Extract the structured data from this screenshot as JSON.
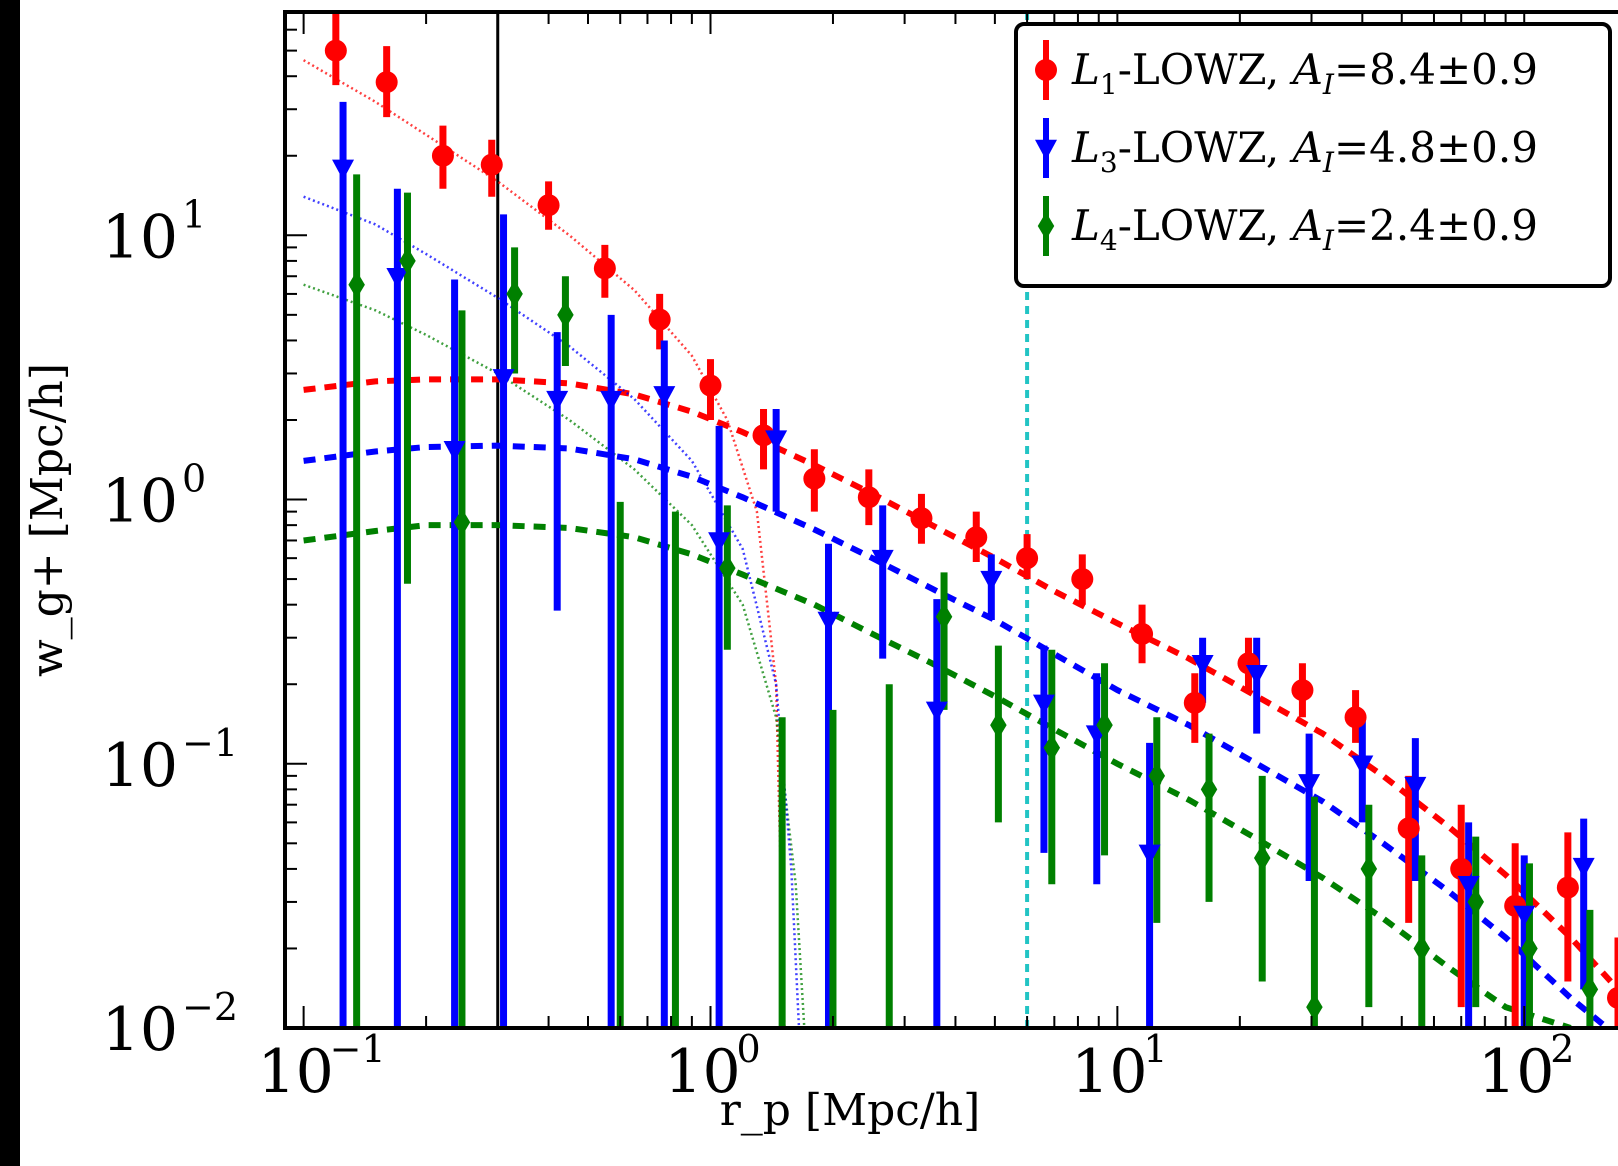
{
  "chart_data": {
    "type": "scatter",
    "xlabel": "r_p [Mpc/h]",
    "ylabel": "w_g+ [Mpc/h]",
    "xscale": "log",
    "yscale": "log",
    "xlim": [
      0.09,
      170
    ],
    "ylim": [
      0.01,
      70
    ],
    "grid": false,
    "legend_position": "top-right",
    "x_ticks": [
      {
        "value": 0.1,
        "base": "10",
        "exp": "−1"
      },
      {
        "value": 1,
        "base": "10",
        "exp": "0"
      },
      {
        "value": 10,
        "base": "10",
        "exp": "1"
      },
      {
        "value": 100,
        "base": "10",
        "exp": "2"
      }
    ],
    "y_ticks": [
      {
        "value": 0.01,
        "base": "10",
        "exp": "−2"
      },
      {
        "value": 0.1,
        "base": "10",
        "exp": "−1"
      },
      {
        "value": 1,
        "base": "10",
        "exp": "0"
      },
      {
        "value": 10,
        "base": "10",
        "exp": "1"
      }
    ],
    "vlines": [
      {
        "x": 0.3,
        "color": "#000000",
        "style": "solid"
      },
      {
        "x": 6.0,
        "color": "#22c4c4",
        "style": "dotted"
      }
    ],
    "series": [
      {
        "name": "L1-LOWZ, AI=8.4±0.9",
        "legend_parts": {
          "L": "L",
          "sub": "1",
          "rest": "-LOWZ, ",
          "A": "A",
          "asub": "I",
          "value": "=8.4±0.9"
        },
        "color": "#ff0000",
        "marker": "circle",
        "x": [
          0.12,
          0.16,
          0.22,
          0.29,
          0.4,
          0.55,
          0.75,
          1.0,
          1.35,
          1.8,
          2.45,
          3.3,
          4.5,
          6.0,
          8.2,
          11.5,
          15.5,
          21,
          28.5,
          38.5,
          52,
          70,
          95,
          128,
          170
        ],
        "y": [
          50,
          38,
          20,
          18.5,
          13,
          7.5,
          4.8,
          2.7,
          1.75,
          1.2,
          1.02,
          0.85,
          0.72,
          0.6,
          0.5,
          0.31,
          0.17,
          0.24,
          0.19,
          0.15,
          0.057,
          0.04,
          0.029,
          0.034,
          0.013
        ],
        "y_low": [
          37,
          28,
          15,
          14,
          10.5,
          5.8,
          3.7,
          2.0,
          1.3,
          0.9,
          0.8,
          0.68,
          0.58,
          0.5,
          0.4,
          0.24,
          0.12,
          0.19,
          0.15,
          0.12,
          0.025,
          0.012,
          0.01,
          0.015,
          0.01
        ],
        "y_high": [
          70,
          52,
          26,
          23,
          16,
          9.2,
          6.0,
          3.4,
          2.2,
          1.55,
          1.3,
          1.05,
          0.9,
          0.74,
          0.62,
          0.4,
          0.22,
          0.3,
          0.24,
          0.19,
          0.09,
          0.07,
          0.05,
          0.055,
          0.022
        ],
        "model": {
          "x": [
            0.1,
            0.15,
            0.2,
            0.3,
            0.45,
            0.65,
            0.9,
            1.2,
            1.8,
            2.5,
            3.5,
            5,
            7,
            10,
            15,
            22,
            32,
            45,
            65,
            90,
            130,
            170
          ],
          "y": [
            2.6,
            2.8,
            2.85,
            2.85,
            2.75,
            2.5,
            2.15,
            1.8,
            1.35,
            1.05,
            0.8,
            0.6,
            0.45,
            0.34,
            0.25,
            0.18,
            0.13,
            0.09,
            0.058,
            0.038,
            0.022,
            0.014
          ]
        },
        "one_halo": {
          "x": [
            0.1,
            0.15,
            0.2,
            0.3,
            0.45,
            0.65,
            0.9,
            1.1,
            1.3,
            1.45,
            1.52
          ],
          "y": [
            46,
            32,
            24,
            16,
            10,
            6.2,
            3.5,
            2.0,
            0.9,
            0.2,
            0.01
          ]
        }
      },
      {
        "name": "L3-LOWZ, AI=4.8±0.9",
        "legend_parts": {
          "L": "L",
          "sub": "3",
          "rest": "-LOWZ, ",
          "A": "A",
          "asub": "I",
          "value": "=4.8±0.9"
        },
        "color": "#0000ff",
        "marker": "triangle-down",
        "x": [
          0.125,
          0.17,
          0.235,
          0.31,
          0.42,
          0.57,
          0.77,
          1.05,
          1.45,
          1.95,
          2.65,
          3.6,
          4.9,
          6.6,
          8.9,
          12,
          16.2,
          22,
          29.6,
          40,
          54,
          73,
          100,
          140
        ],
        "y": [
          18,
          7.0,
          1.55,
          2.9,
          2.4,
          2.4,
          2.5,
          0.7,
          1.7,
          0.35,
          0.6,
          0.16,
          0.5,
          0.17,
          0.13,
          0.046,
          0.24,
          0.22,
          0.085,
          0.1,
          0.083,
          0.035,
          0.027,
          0.041
        ],
        "y_low": [
          0.01,
          0.01,
          0.01,
          0.01,
          0.38,
          0.01,
          0.01,
          0.01,
          0.9,
          0.01,
          0.25,
          0.01,
          0.35,
          0.046,
          0.035,
          0.01,
          0.17,
          0.13,
          0.036,
          0.06,
          0.036,
          0.01,
          0.01,
          0.014
        ],
        "y_high": [
          32,
          15,
          6.8,
          12,
          4.3,
          5.0,
          4.0,
          1.9,
          2.2,
          0.68,
          0.95,
          0.42,
          0.62,
          0.28,
          0.22,
          0.12,
          0.3,
          0.3,
          0.13,
          0.15,
          0.125,
          0.06,
          0.045,
          0.062
        ]
      },
      {
        "name": "L4-LOWZ, AI=2.4±0.9",
        "legend_parts": {
          "L": "L",
          "sub": "4",
          "rest": "-LOWZ, ",
          "A": "A",
          "asub": "I",
          "value": "=2.4±0.9"
        },
        "color": "#008000",
        "marker": "diamond",
        "x": [
          0.135,
          0.18,
          0.245,
          0.33,
          0.44,
          0.6,
          0.82,
          1.1,
          1.5,
          2.0,
          2.75,
          3.75,
          5.1,
          6.9,
          9.3,
          12.5,
          16.8,
          22.7,
          30.5,
          41.5,
          56,
          76,
          103,
          145
        ],
        "y": [
          6.5,
          8.0,
          0.82,
          6.0,
          5.0,
          0.01,
          0.01,
          0.55,
          0.01,
          0.01,
          0.01,
          0.36,
          0.14,
          0.115,
          0.14,
          0.09,
          0.08,
          0.044,
          0.012,
          0.04,
          0.02,
          0.03,
          0.02,
          0.014
        ],
        "y_low": [
          0.01,
          0.48,
          0.01,
          3.0,
          3.2,
          0.01,
          0.01,
          0.27,
          0.01,
          0.01,
          0.01,
          0.16,
          0.06,
          0.035,
          0.045,
          0.025,
          0.03,
          0.015,
          0.01,
          0.012,
          0.01,
          0.012,
          0.01,
          0.01
        ],
        "y_high": [
          17,
          14.5,
          5.2,
          9.0,
          7.0,
          0.98,
          0.9,
          0.95,
          0.15,
          0.16,
          0.2,
          0.53,
          0.28,
          0.27,
          0.24,
          0.15,
          0.13,
          0.09,
          0.075,
          0.07,
          0.045,
          0.053,
          0.042,
          0.028
        ],
        "model": {
          "x": [
            0.1,
            0.15,
            0.2,
            0.3,
            0.45,
            0.65,
            0.9,
            1.2,
            1.8,
            2.5,
            3.5,
            5,
            7,
            10,
            15,
            22,
            32,
            45,
            65,
            90,
            130
          ],
          "y": [
            0.7,
            0.76,
            0.8,
            0.8,
            0.78,
            0.72,
            0.62,
            0.52,
            0.4,
            0.31,
            0.24,
            0.18,
            0.135,
            0.1,
            0.073,
            0.052,
            0.037,
            0.026,
            0.017,
            0.012,
            0.01
          ]
        },
        "one_halo": {
          "x": [
            0.1,
            0.15,
            0.2,
            0.3,
            0.45,
            0.65,
            0.9,
            1.2,
            1.45,
            1.62,
            1.7
          ],
          "y": [
            6.5,
            5.2,
            4.2,
            3.0,
            2.0,
            1.3,
            0.8,
            0.4,
            0.15,
            0.035,
            0.01
          ]
        }
      }
    ],
    "extra_models": [
      {
        "color": "#0000ff",
        "model": {
          "x": [
            0.1,
            0.15,
            0.2,
            0.3,
            0.45,
            0.65,
            0.9,
            1.2,
            1.8,
            2.5,
            3.5,
            5,
            7,
            10,
            15,
            22,
            32,
            45,
            65,
            90,
            130,
            160
          ],
          "y": [
            1.4,
            1.52,
            1.58,
            1.6,
            1.56,
            1.42,
            1.22,
            1.02,
            0.77,
            0.6,
            0.46,
            0.35,
            0.26,
            0.19,
            0.14,
            0.1,
            0.072,
            0.05,
            0.033,
            0.022,
            0.013,
            0.01
          ]
        },
        "one_halo": {
          "x": [
            0.1,
            0.15,
            0.2,
            0.3,
            0.45,
            0.65,
            0.9,
            1.2,
            1.45,
            1.58,
            1.65
          ],
          "y": [
            14,
            11,
            8.5,
            5.8,
            3.8,
            2.4,
            1.4,
            0.65,
            0.2,
            0.04,
            0.01
          ]
        }
      }
    ]
  }
}
